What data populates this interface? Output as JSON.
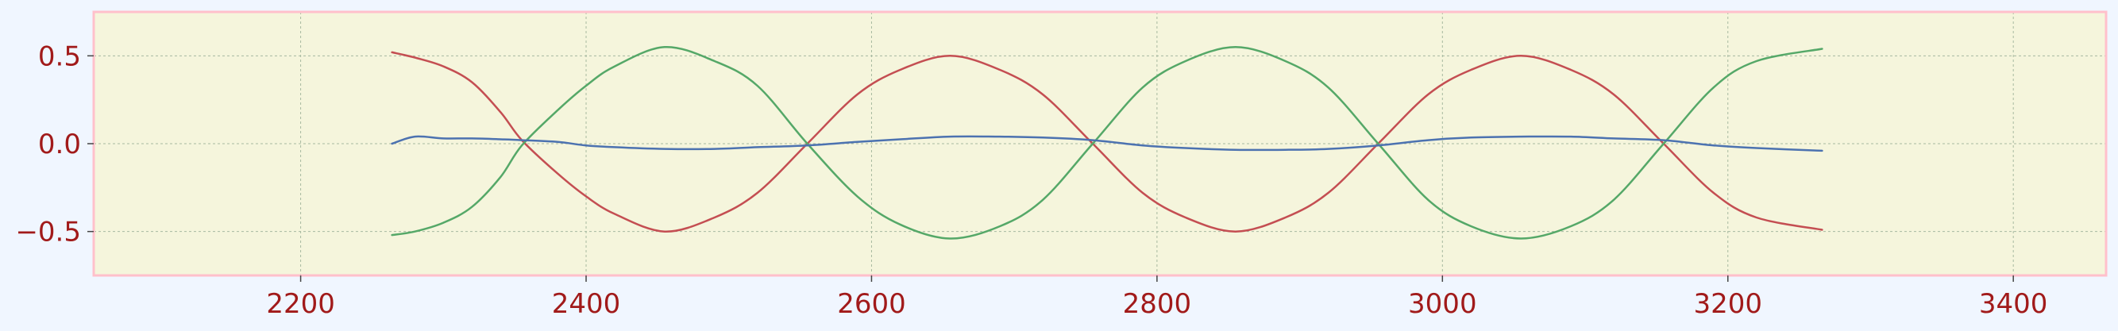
{
  "chart_data": {
    "type": "line",
    "title": "",
    "xlabel": "",
    "ylabel": "",
    "xlim": [
      2055,
      3465
    ],
    "ylim": [
      -0.75,
      0.75
    ],
    "x_ticks": [
      2200,
      2400,
      2600,
      2800,
      3000,
      3200,
      3400
    ],
    "x_tick_labels": [
      "2200",
      "2400",
      "2600",
      "2800",
      "3000",
      "3200",
      "3400"
    ],
    "y_ticks": [
      0.5,
      0.0,
      -0.5
    ],
    "y_tick_labels": [
      "0.5",
      "0.0",
      "−0.5"
    ],
    "grid": true,
    "legend": "none",
    "x": [
      2264,
      2280,
      2300,
      2320,
      2340,
      2355,
      2380,
      2400,
      2420,
      2455,
      2490,
      2520,
      2555,
      2590,
      2620,
      2655,
      2690,
      2720,
      2755,
      2790,
      2820,
      2855,
      2890,
      2920,
      2955,
      2990,
      3020,
      3055,
      3090,
      3120,
      3155,
      3190,
      3220,
      3266
    ],
    "series": [
      {
        "color": "#c44e52",
        "values": [
          0.52,
          0.49,
          0.44,
          0.35,
          0.18,
          0.02,
          -0.17,
          -0.3,
          -0.4,
          -0.5,
          -0.42,
          -0.28,
          0.0,
          0.28,
          0.42,
          0.5,
          0.42,
          0.28,
          0.0,
          -0.28,
          -0.42,
          -0.5,
          -0.42,
          -0.28,
          0.0,
          0.28,
          0.42,
          0.5,
          0.42,
          0.28,
          0.0,
          -0.28,
          -0.42,
          -0.49
        ]
      },
      {
        "color": "#55a868",
        "values": [
          -0.52,
          -0.5,
          -0.45,
          -0.36,
          -0.19,
          -0.01,
          0.19,
          0.33,
          0.44,
          0.55,
          0.47,
          0.33,
          0.0,
          -0.3,
          -0.46,
          -0.54,
          -0.47,
          -0.32,
          0.0,
          0.32,
          0.47,
          0.55,
          0.47,
          0.32,
          0.0,
          -0.32,
          -0.47,
          -0.54,
          -0.47,
          -0.32,
          0.0,
          0.32,
          0.47,
          0.54
        ]
      },
      {
        "color": "#4c72b0",
        "values": [
          0.0,
          0.04,
          0.03,
          0.03,
          0.025,
          0.02,
          0.01,
          -0.01,
          -0.02,
          -0.03,
          -0.03,
          -0.02,
          -0.01,
          0.01,
          0.025,
          0.04,
          0.04,
          0.035,
          0.02,
          -0.01,
          -0.025,
          -0.035,
          -0.035,
          -0.03,
          -0.01,
          0.02,
          0.035,
          0.04,
          0.04,
          0.03,
          0.02,
          -0.01,
          -0.025,
          -0.04
        ]
      }
    ],
    "colors": {
      "page_background": "#f0f6ff",
      "plot_background": "#f5f5dc",
      "frame": "#ffc0cb",
      "grid": "#a7b9a0",
      "tick_label": "#a11a1a"
    }
  }
}
